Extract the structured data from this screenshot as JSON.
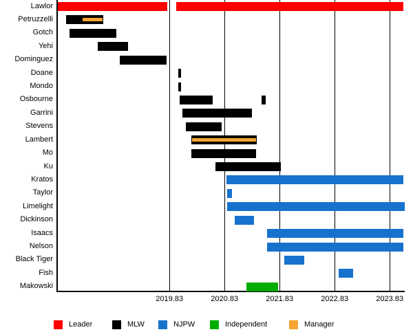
{
  "chart_data": {
    "type": "bar",
    "subtype": "timeline-gantt",
    "title": "",
    "xlabel": "",
    "ylabel": "",
    "grid": true,
    "legend_position": "bottom",
    "x_axis": {
      "min": 2017.79,
      "max": 2024.1,
      "tick_values": [
        2019.83,
        2020.83,
        2021.83,
        2022.83,
        2023.83
      ],
      "tick_labels": [
        "2019.83",
        "2020.83",
        "2021.83",
        "2022.83",
        "2023.83"
      ]
    },
    "legend": [
      {
        "label": "Leader",
        "color": "#FF0000"
      },
      {
        "label": "MLW",
        "color": "#000000"
      },
      {
        "label": "NJPW",
        "color": "#1772CE"
      },
      {
        "label": "Independent",
        "color": "#00AC00"
      },
      {
        "label": "Manager",
        "color": "#F6A432"
      }
    ],
    "rows": [
      {
        "label": "Lawlor",
        "segments": [
          {
            "start": 2017.8,
            "end": 2019.79,
            "group": "Leader"
          },
          {
            "start": 2019.95,
            "end": 2024.08,
            "group": "Leader"
          }
        ]
      },
      {
        "label": "Petruzzelli",
        "segments": [
          {
            "start": 2017.95,
            "end": 2018.63,
            "group": "MLW"
          },
          {
            "start": 2018.25,
            "end": 2018.62,
            "group": "Manager",
            "overlay": true
          }
        ]
      },
      {
        "label": "Gotch",
        "segments": [
          {
            "start": 2018.02,
            "end": 2018.86,
            "group": "MLW"
          }
        ]
      },
      {
        "label": "Yehi",
        "segments": [
          {
            "start": 2018.53,
            "end": 2019.08,
            "group": "MLW"
          }
        ]
      },
      {
        "label": "Dominguez",
        "segments": [
          {
            "start": 2018.93,
            "end": 2019.78,
            "group": "MLW"
          }
        ]
      },
      {
        "label": "Doane",
        "segments": [
          {
            "start": 2019.99,
            "end": 2020.04,
            "group": "MLW"
          }
        ]
      },
      {
        "label": "Mondo",
        "segments": [
          {
            "start": 2019.99,
            "end": 2020.04,
            "group": "MLW"
          }
        ]
      },
      {
        "label": "Osbourne",
        "segments": [
          {
            "start": 2020.02,
            "end": 2020.62,
            "group": "MLW"
          },
          {
            "start": 2021.5,
            "end": 2021.58,
            "group": "MLW"
          }
        ]
      },
      {
        "label": "Garrini",
        "segments": [
          {
            "start": 2020.07,
            "end": 2021.33,
            "group": "MLW"
          }
        ]
      },
      {
        "label": "Stevens",
        "segments": [
          {
            "start": 2020.13,
            "end": 2020.78,
            "group": "MLW"
          }
        ]
      },
      {
        "label": "Lambert",
        "segments": [
          {
            "start": 2020.23,
            "end": 2021.41,
            "group": "MLW"
          },
          {
            "start": 2020.24,
            "end": 2021.4,
            "group": "Manager",
            "overlay": true
          }
        ]
      },
      {
        "label": "Mo",
        "segments": [
          {
            "start": 2020.23,
            "end": 2021.4,
            "group": "MLW"
          }
        ]
      },
      {
        "label": "Ku",
        "segments": [
          {
            "start": 2020.67,
            "end": 2021.85,
            "group": "MLW"
          }
        ]
      },
      {
        "label": "Kratos",
        "segments": [
          {
            "start": 2020.87,
            "end": 2024.08,
            "group": "NJPW"
          }
        ]
      },
      {
        "label": "Taylor",
        "segments": [
          {
            "start": 2020.88,
            "end": 2020.97,
            "group": "NJPW"
          }
        ]
      },
      {
        "label": "Limelight",
        "segments": [
          {
            "start": 2020.88,
            "end": 2024.1,
            "group": "NJPW"
          }
        ]
      },
      {
        "label": "Dickinson",
        "segments": [
          {
            "start": 2021.02,
            "end": 2021.37,
            "group": "NJPW"
          }
        ]
      },
      {
        "label": "Isaacs",
        "segments": [
          {
            "start": 2021.6,
            "end": 2024.08,
            "group": "NJPW"
          }
        ]
      },
      {
        "label": "Nelson",
        "segments": [
          {
            "start": 2021.6,
            "end": 2024.08,
            "group": "NJPW"
          }
        ]
      },
      {
        "label": "Black Tiger",
        "segments": [
          {
            "start": 2021.91,
            "end": 2022.28,
            "group": "NJPW"
          }
        ]
      },
      {
        "label": "Fish",
        "segments": [
          {
            "start": 2022.9,
            "end": 2023.16,
            "group": "NJPW"
          }
        ]
      },
      {
        "label": "Makowski",
        "segments": [
          {
            "start": 2021.23,
            "end": 2021.8,
            "group": "Independent"
          }
        ]
      }
    ]
  }
}
